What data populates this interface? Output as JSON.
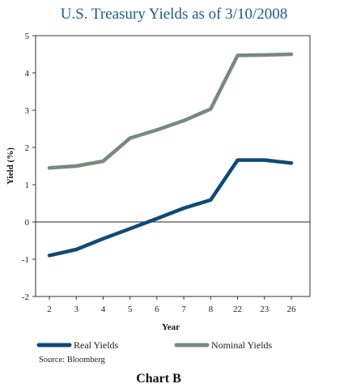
{
  "chart_data": {
    "type": "line",
    "title": "U.S. Treasury Yields as of 3/10/2008",
    "xlabel": "Year",
    "ylabel": "Yield (%)",
    "ylim": [
      -2,
      5
    ],
    "yticks": [
      "-2",
      "-1",
      "0",
      "1",
      "2",
      "3",
      "4",
      "5"
    ],
    "categories": [
      "2",
      "3",
      "4",
      "5",
      "6",
      "7",
      "8",
      "22",
      "23",
      "26"
    ],
    "zero_line": true,
    "grid": false,
    "legend_position": "bottom",
    "series": [
      {
        "name": "Real Yields",
        "color": "#0f4a77",
        "values": [
          -0.9,
          -0.74,
          -0.45,
          -0.18,
          0.09,
          0.37,
          0.59,
          1.66,
          1.66,
          1.58
        ]
      },
      {
        "name": "Nominal Yields",
        "color": "#788a7c",
        "values": [
          1.45,
          1.5,
          1.63,
          2.25,
          2.47,
          2.72,
          3.03,
          4.47,
          4.48,
          4.5
        ]
      }
    ],
    "source": "Source: Bloomberg",
    "caption": "Chart B"
  }
}
